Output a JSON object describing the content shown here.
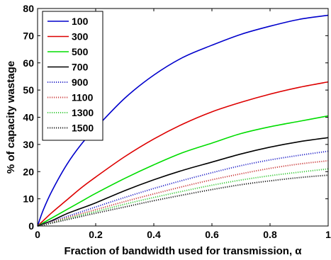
{
  "chart_data": {
    "type": "line",
    "xlabel": "Fraction of bandwidth used for transmission, α",
    "ylabel": "% of capacity wastage",
    "xlim": [
      0,
      1
    ],
    "ylim": [
      0,
      80
    ],
    "xticks": [
      0,
      0.2,
      0.4,
      0.6,
      0.8,
      1
    ],
    "xtick_labels": [
      "0",
      "0.2",
      "0.4",
      "0.6",
      "0.8",
      "1"
    ],
    "yticks": [
      0,
      10,
      20,
      30,
      40,
      50,
      60,
      70,
      80
    ],
    "ytick_labels": [
      "0",
      "10",
      "20",
      "30",
      "40",
      "50",
      "60",
      "70",
      "80"
    ],
    "grid": false,
    "legend_position": "top-left",
    "x": [
      0,
      0.02,
      0.05,
      0.1,
      0.15,
      0.2,
      0.3,
      0.4,
      0.5,
      0.6,
      0.7,
      0.8,
      0.9,
      1.0
    ],
    "series": [
      {
        "name": "100",
        "color": "#0000cc",
        "style": "solid",
        "values": [
          0,
          6,
          13,
          22.5,
          30,
          36,
          47,
          55.5,
          62,
          66.5,
          70.5,
          73.5,
          76,
          77.5
        ]
      },
      {
        "name": "300",
        "color": "#dd0000",
        "style": "solid",
        "values": [
          0,
          2,
          5,
          9.5,
          14,
          18,
          25.5,
          32,
          37.5,
          42,
          45.5,
          48.5,
          51,
          53
        ]
      },
      {
        "name": "500",
        "color": "#00dd00",
        "style": "solid",
        "values": [
          0,
          1.2,
          3,
          6,
          9,
          12,
          17.5,
          22.5,
          27,
          30.5,
          34,
          36.5,
          38.5,
          40.5
        ]
      },
      {
        "name": "700",
        "color": "#000000",
        "style": "solid",
        "values": [
          0,
          0.8,
          2,
          4.5,
          6.5,
          8.5,
          13,
          17,
          20.5,
          23.5,
          26.5,
          29,
          31,
          32.5
        ]
      },
      {
        "name": "900",
        "color": "#3333cc",
        "style": "dotted",
        "values": [
          0,
          0.6,
          1.6,
          3.5,
          5.2,
          7,
          10.5,
          13.8,
          16.8,
          19.6,
          22.2,
          24.3,
          26,
          27.5
        ]
      },
      {
        "name": "1100",
        "color": "#cc4444",
        "style": "dotted",
        "values": [
          0,
          0.5,
          1.4,
          3,
          4.5,
          6,
          9,
          11.8,
          14.5,
          17,
          19.2,
          21.2,
          22.8,
          24
        ]
      },
      {
        "name": "1300",
        "color": "#44cc44",
        "style": "dotted",
        "values": [
          0,
          0.45,
          1.2,
          2.6,
          4,
          5.3,
          8,
          10.5,
          12.8,
          15,
          16.9,
          18.5,
          19.8,
          21
        ]
      },
      {
        "name": "1500",
        "color": "#222222",
        "style": "dotted",
        "values": [
          0,
          0.4,
          1.1,
          2.3,
          3.5,
          4.7,
          7,
          9.3,
          11.4,
          13.4,
          15.2,
          16.6,
          17.8,
          18.7
        ]
      }
    ]
  }
}
